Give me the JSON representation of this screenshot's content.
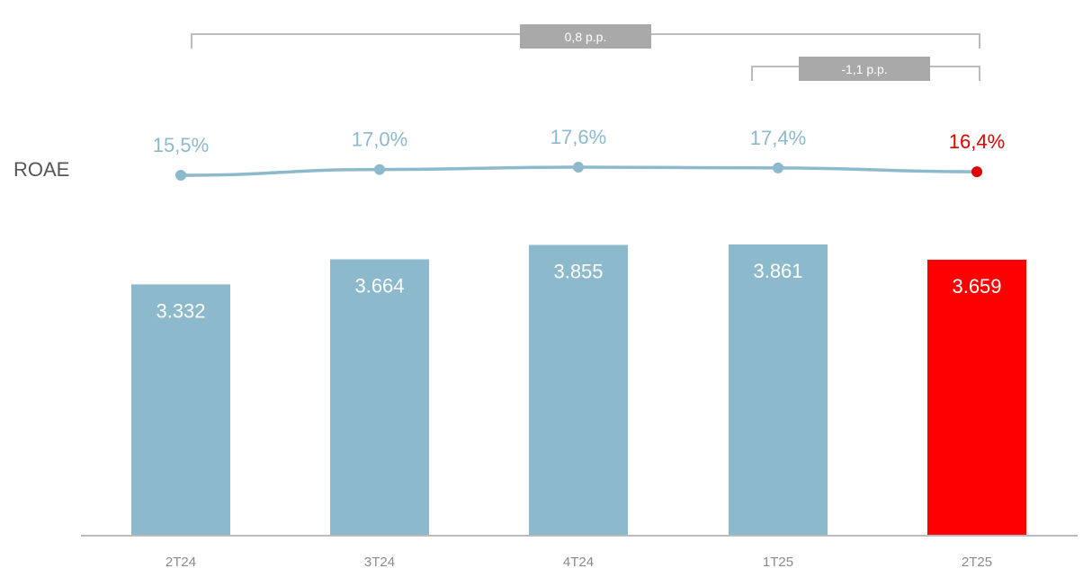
{
  "chart_data": {
    "type": "bar",
    "categories": [
      "2T24",
      "3T24",
      "4T24",
      "1T25",
      "2T25"
    ],
    "series": [
      {
        "values": [
          3332,
          3664,
          3855,
          3861,
          3659
        ],
        "labels": [
          "3.332",
          "3.664",
          "3.855",
          "3.861",
          "3.659"
        ],
        "colors": [
          "#8cb9cc",
          "#8cb9cc",
          "#8cb9cc",
          "#8cb9cc",
          "#ff0000"
        ]
      },
      {
        "name": "ROAE",
        "type": "line",
        "values": [
          15.5,
          17.0,
          17.6,
          17.4,
          16.4
        ],
        "labels": [
          "15,5%",
          "17,0%",
          "17,6%",
          "17,4%",
          "16,4%"
        ],
        "colors": [
          "#8cb9cc",
          "#8cb9cc",
          "#8cb9cc",
          "#8cb9cc",
          "#e00000"
        ]
      }
    ],
    "annotations": [
      {
        "text": "0,8 p.p.",
        "from": "2T24",
        "to": "2T25"
      },
      {
        "text": "-1,1 p.p.",
        "from": "1T25",
        "to": "2T25"
      }
    ],
    "colors": {
      "bar": "#8cb9cc",
      "highlight_bar": "#ff0000",
      "line": "#8cb9cc",
      "highlight_label": "#e00000",
      "axis": "#bbbbbb",
      "bracket": "#bbbbbb",
      "bracket_box": "#a9a9a9"
    }
  }
}
